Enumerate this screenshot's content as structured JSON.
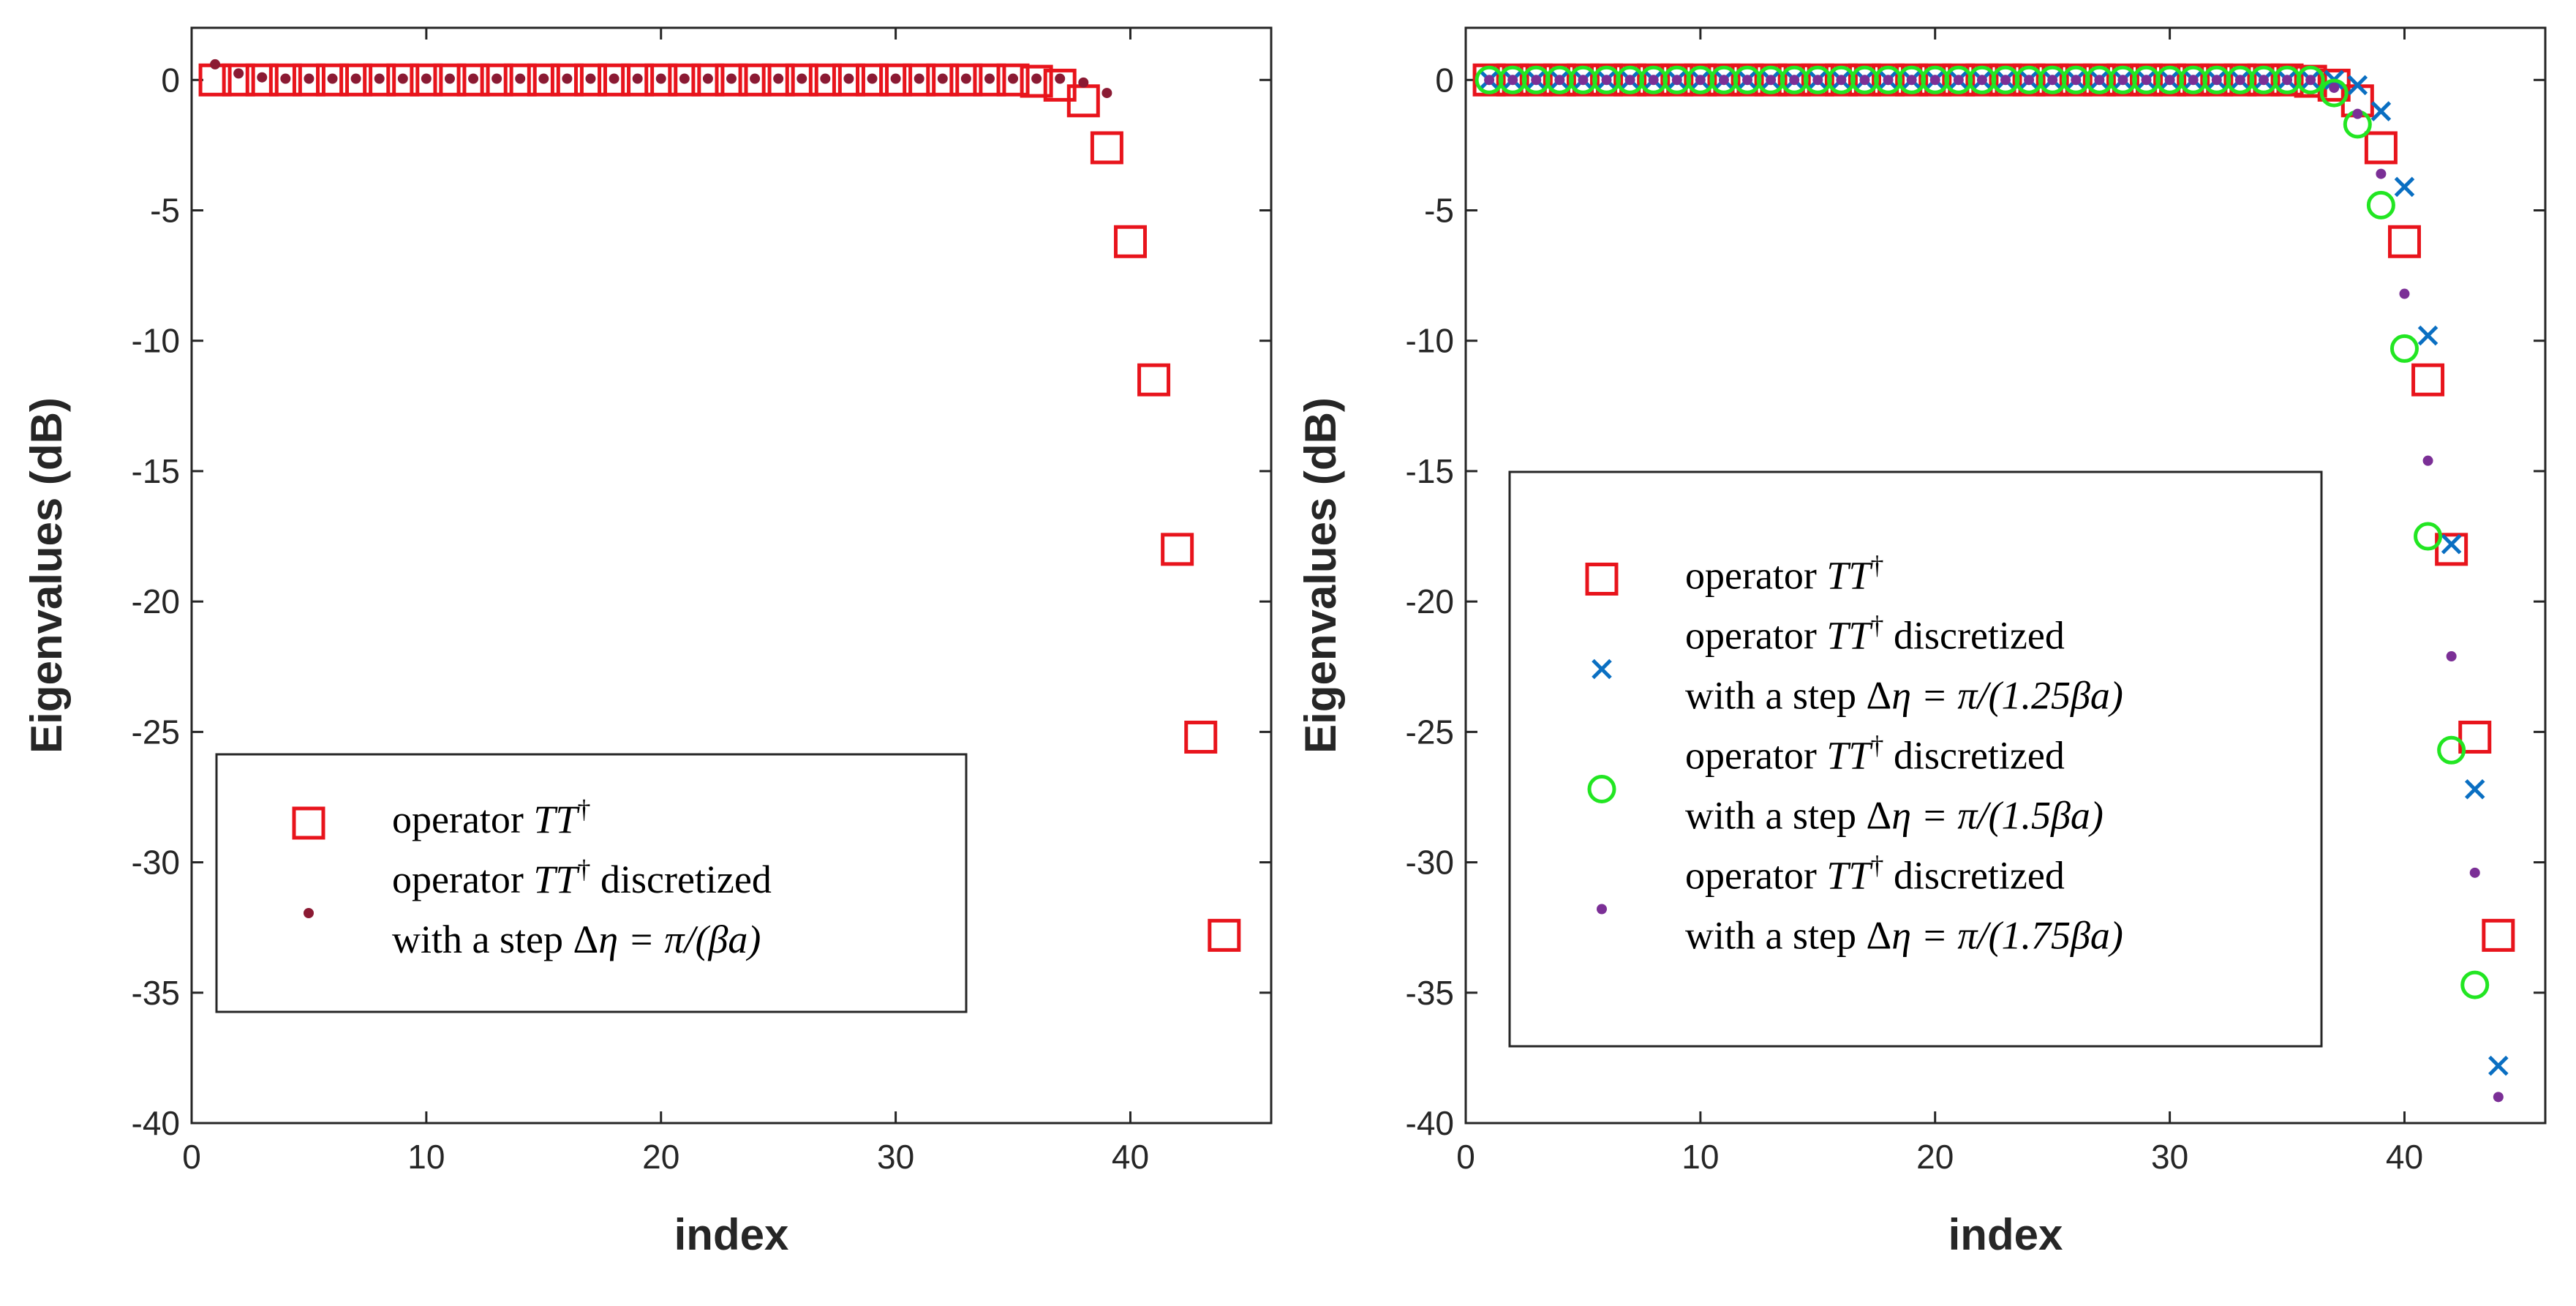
{
  "colors": {
    "square": "#e8141c",
    "dot_left": "#8b1a33",
    "cross": "#0a6fc2",
    "circle": "#22e622",
    "dot_purple": "#7b2f96",
    "axis": "#262626"
  },
  "chart_data": [
    {
      "type": "scatter",
      "xlabel": "index",
      "ylabel": "Eigenvalues (dB)",
      "xlim": [
        0,
        46
      ],
      "ylim": [
        -40,
        2
      ],
      "xticks": [
        0,
        10,
        20,
        30,
        40
      ],
      "yticks": [
        0,
        -5,
        -10,
        -15,
        -20,
        -25,
        -30,
        -35,
        -40
      ],
      "legend_position": "bottom-left",
      "series": [
        {
          "name": "operator TT† (squares)",
          "marker": "square",
          "x": [
            1,
            2,
            3,
            4,
            5,
            6,
            7,
            8,
            9,
            10,
            11,
            12,
            13,
            14,
            15,
            16,
            17,
            18,
            19,
            20,
            21,
            22,
            23,
            24,
            25,
            26,
            27,
            28,
            29,
            30,
            31,
            32,
            33,
            34,
            35,
            36,
            37,
            38,
            39,
            40,
            41,
            42,
            43,
            44
          ],
          "y": [
            0,
            0,
            0,
            0,
            0,
            0,
            0,
            0,
            0,
            0,
            0,
            0,
            0,
            0,
            0,
            0,
            0,
            0,
            0,
            0,
            0,
            0,
            0,
            0,
            0,
            0,
            0,
            0,
            0,
            0,
            0,
            0,
            0,
            0,
            0,
            -0.05,
            -0.2,
            -0.8,
            -2.6,
            -6.2,
            -11.5,
            -18,
            -25.2,
            -32.8
          ]
        },
        {
          "name": "discretized Δη = π/(βa) (dots)",
          "marker": "dot",
          "x": [
            1,
            2,
            3,
            4,
            5,
            6,
            7,
            8,
            9,
            10,
            11,
            12,
            13,
            14,
            15,
            16,
            17,
            18,
            19,
            20,
            21,
            22,
            23,
            24,
            25,
            26,
            27,
            28,
            29,
            30,
            31,
            32,
            33,
            34,
            35,
            36,
            37,
            38,
            39
          ],
          "y": [
            0.6,
            0.25,
            0.1,
            0.05,
            0.05,
            0.05,
            0.05,
            0.05,
            0.05,
            0.05,
            0.05,
            0.05,
            0.05,
            0.05,
            0.05,
            0.05,
            0.05,
            0.05,
            0.05,
            0.05,
            0.05,
            0.05,
            0.05,
            0.05,
            0.05,
            0.05,
            0.05,
            0.05,
            0.05,
            0.05,
            0.05,
            0.05,
            0.05,
            0.05,
            0.05,
            0.05,
            0.05,
            -0.1,
            -0.5
          ]
        }
      ],
      "legend": [
        {
          "marker": "square",
          "lines": [
            [
              "operator ",
              "TT",
              "†",
              ""
            ]
          ]
        },
        {
          "marker": "dot",
          "lines": [
            [
              "operator ",
              "TT",
              "†",
              " discretized"
            ],
            [
              "with a step Δ",
              "η = π/(βa)",
              "",
              ""
            ]
          ]
        }
      ]
    },
    {
      "type": "scatter",
      "xlabel": "index",
      "ylabel": "Eigenvalues (dB)",
      "xlim": [
        0,
        46
      ],
      "ylim": [
        -40,
        2
      ],
      "xticks": [
        0,
        10,
        20,
        30,
        40
      ],
      "yticks": [
        0,
        -5,
        -10,
        -15,
        -20,
        -25,
        -30,
        -35,
        -40
      ],
      "legend_position": "center-left",
      "series": [
        {
          "name": "operator TT† (squares)",
          "marker": "square",
          "x": [
            1,
            2,
            3,
            4,
            5,
            6,
            7,
            8,
            9,
            10,
            11,
            12,
            13,
            14,
            15,
            16,
            17,
            18,
            19,
            20,
            21,
            22,
            23,
            24,
            25,
            26,
            27,
            28,
            29,
            30,
            31,
            32,
            33,
            34,
            35,
            36,
            37,
            38,
            39,
            40,
            41,
            42,
            43,
            44
          ],
          "y": [
            0,
            0,
            0,
            0,
            0,
            0,
            0,
            0,
            0,
            0,
            0,
            0,
            0,
            0,
            0,
            0,
            0,
            0,
            0,
            0,
            0,
            0,
            0,
            0,
            0,
            0,
            0,
            0,
            0,
            0,
            0,
            0,
            0,
            0,
            0,
            -0.05,
            -0.2,
            -0.8,
            -2.6,
            -6.2,
            -11.5,
            -18,
            -25.2,
            -32.8
          ]
        },
        {
          "name": "Δη = π/(1.25βa) (crosses)",
          "marker": "cross",
          "x": [
            1,
            2,
            3,
            4,
            5,
            6,
            7,
            8,
            9,
            10,
            11,
            12,
            13,
            14,
            15,
            16,
            17,
            18,
            19,
            20,
            21,
            22,
            23,
            24,
            25,
            26,
            27,
            28,
            29,
            30,
            31,
            32,
            33,
            34,
            35,
            36,
            37,
            38,
            39,
            40,
            41,
            42,
            43,
            44
          ],
          "y": [
            0,
            0,
            0,
            0,
            0,
            0,
            0,
            0,
            0,
            0,
            0,
            0,
            0,
            0,
            0,
            0,
            0,
            0,
            0,
            0,
            0,
            0,
            0,
            0,
            0,
            0,
            0,
            0,
            0,
            0,
            0,
            0,
            0,
            0,
            0,
            0,
            0,
            -0.2,
            -1.2,
            -4.1,
            -9.8,
            -17.8,
            -27.2,
            -37.8
          ]
        },
        {
          "name": "Δη = π/(1.5βa) (circles)",
          "marker": "circle",
          "x": [
            1,
            2,
            3,
            4,
            5,
            6,
            7,
            8,
            9,
            10,
            11,
            12,
            13,
            14,
            15,
            16,
            17,
            18,
            19,
            20,
            21,
            22,
            23,
            24,
            25,
            26,
            27,
            28,
            29,
            30,
            31,
            32,
            33,
            34,
            35,
            36,
            37,
            38,
            39,
            40,
            41,
            42,
            43
          ],
          "y": [
            0,
            0,
            0,
            0,
            0,
            0,
            0,
            0,
            0,
            0,
            0,
            0,
            0,
            0,
            0,
            0,
            0,
            0,
            0,
            0,
            0,
            0,
            0,
            0,
            0,
            0,
            0,
            0,
            0,
            0,
            0,
            0,
            0,
            0,
            0,
            0,
            -0.5,
            -1.7,
            -4.8,
            -10.3,
            -17.5,
            -25.7,
            -34.7
          ]
        },
        {
          "name": "Δη = π/(1.75βa) (dots)",
          "marker": "dot",
          "x": [
            1,
            2,
            3,
            4,
            5,
            6,
            7,
            8,
            9,
            10,
            11,
            12,
            13,
            14,
            15,
            16,
            17,
            18,
            19,
            20,
            21,
            22,
            23,
            24,
            25,
            26,
            27,
            28,
            29,
            30,
            31,
            32,
            33,
            34,
            35,
            36,
            37,
            38,
            39,
            40,
            41,
            42,
            43,
            44
          ],
          "y": [
            0,
            0,
            0,
            0,
            0,
            0,
            0,
            0,
            0,
            0,
            0,
            0,
            0,
            0,
            0,
            0,
            0,
            0,
            0,
            0,
            0,
            0,
            0,
            0,
            0,
            0,
            0,
            0,
            0,
            0,
            0,
            0,
            0,
            0,
            0,
            0,
            -0.3,
            -1.3,
            -3.6,
            -8.2,
            -14.6,
            -22.1,
            -30.4,
            -39.0
          ]
        }
      ],
      "legend": [
        {
          "marker": "square",
          "lines": [
            [
              "operator ",
              "TT",
              "†",
              ""
            ]
          ]
        },
        {
          "marker": "cross",
          "lines": [
            [
              "operator ",
              "TT",
              "†",
              " discretized"
            ],
            [
              "with a step Δ",
              "η = π/(1.25βa)",
              "",
              ""
            ]
          ]
        },
        {
          "marker": "circle",
          "lines": [
            [
              "operator ",
              "TT",
              "†",
              " discretized"
            ],
            [
              "with a step Δ",
              "η = π/(1.5βa)",
              "",
              ""
            ]
          ]
        },
        {
          "marker": "dot",
          "lines": [
            [
              "operator ",
              "TT",
              "†",
              " discretized"
            ],
            [
              "with a step Δ",
              "η = π/(1.75βa)",
              "",
              ""
            ]
          ]
        }
      ]
    }
  ]
}
